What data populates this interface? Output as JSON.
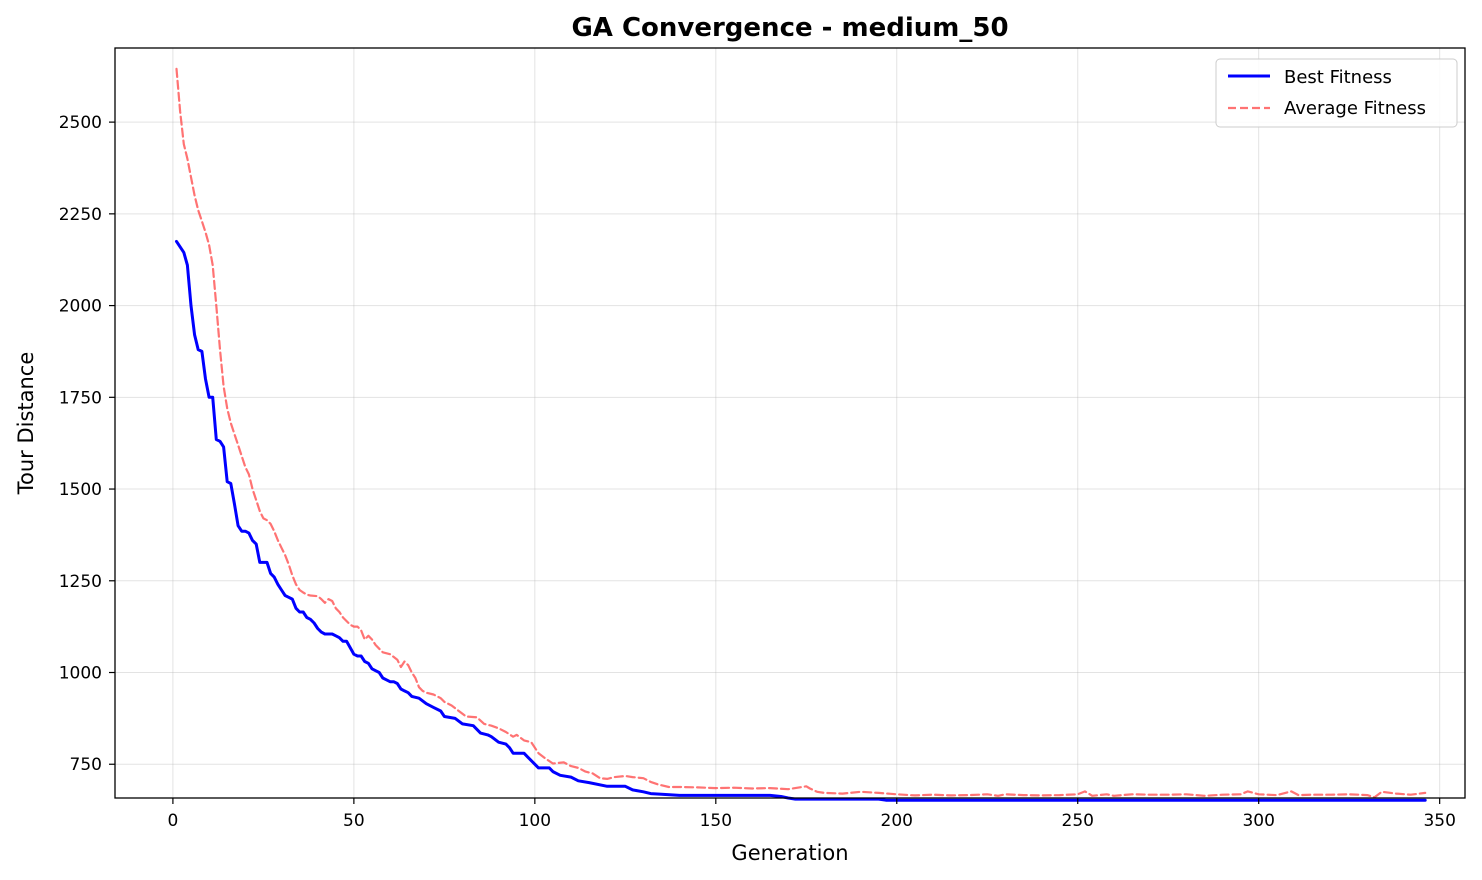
{
  "chart_data": {
    "type": "line",
    "title": "GA Convergence - medium_50",
    "xlabel": "Generation",
    "ylabel": "Tour Distance",
    "xlim": [
      -16,
      357
    ],
    "ylim": [
      658,
      2702
    ],
    "xticks": [
      0,
      50,
      100,
      150,
      200,
      250,
      300,
      350
    ],
    "yticks": [
      750,
      1000,
      1250,
      1500,
      1750,
      2000,
      2250,
      2500
    ],
    "xtick_labels": [
      "0",
      "50",
      "100",
      "150",
      "200",
      "250",
      "300",
      "350"
    ],
    "ytick_labels": [
      "750",
      "1000",
      "1250",
      "1500",
      "1750",
      "2000",
      "2250",
      "2500"
    ],
    "grid": true,
    "legend_position": "top-right",
    "series": [
      {
        "name": "Best Fitness",
        "color": "#0000ff",
        "style": "solid",
        "points": [
          [
            1,
            2175
          ],
          [
            3,
            2145
          ],
          [
            4,
            2110
          ],
          [
            5,
            2000
          ],
          [
            6,
            1920
          ],
          [
            7,
            1880
          ],
          [
            8,
            1875
          ],
          [
            9,
            1800
          ],
          [
            10,
            1750
          ],
          [
            11,
            1750
          ],
          [
            12,
            1635
          ],
          [
            13,
            1630
          ],
          [
            14,
            1615
          ],
          [
            15,
            1520
          ],
          [
            16,
            1515
          ],
          [
            17,
            1460
          ],
          [
            18,
            1400
          ],
          [
            19,
            1385
          ],
          [
            20,
            1385
          ],
          [
            21,
            1380
          ],
          [
            22,
            1360
          ],
          [
            23,
            1350
          ],
          [
            24,
            1300
          ],
          [
            25,
            1300
          ],
          [
            26,
            1300
          ],
          [
            27,
            1270
          ],
          [
            28,
            1260
          ],
          [
            29,
            1240
          ],
          [
            30,
            1225
          ],
          [
            31,
            1210
          ],
          [
            32,
            1205
          ],
          [
            33,
            1200
          ],
          [
            34,
            1175
          ],
          [
            35,
            1165
          ],
          [
            36,
            1165
          ],
          [
            37,
            1150
          ],
          [
            38,
            1145
          ],
          [
            39,
            1135
          ],
          [
            40,
            1120
          ],
          [
            41,
            1110
          ],
          [
            42,
            1105
          ],
          [
            44,
            1105
          ],
          [
            45,
            1100
          ],
          [
            46,
            1095
          ],
          [
            47,
            1085
          ],
          [
            48,
            1085
          ],
          [
            50,
            1050
          ],
          [
            51,
            1045
          ],
          [
            52,
            1045
          ],
          [
            53,
            1030
          ],
          [
            54,
            1025
          ],
          [
            55,
            1010
          ],
          [
            56,
            1005
          ],
          [
            57,
            1000
          ],
          [
            58,
            985
          ],
          [
            59,
            980
          ],
          [
            60,
            975
          ],
          [
            61,
            975
          ],
          [
            62,
            970
          ],
          [
            63,
            955
          ],
          [
            64,
            950
          ],
          [
            65,
            945
          ],
          [
            66,
            935
          ],
          [
            68,
            930
          ],
          [
            70,
            915
          ],
          [
            72,
            905
          ],
          [
            74,
            895
          ],
          [
            75,
            880
          ],
          [
            78,
            875
          ],
          [
            80,
            860
          ],
          [
            83,
            855
          ],
          [
            85,
            835
          ],
          [
            87,
            830
          ],
          [
            88,
            825
          ],
          [
            90,
            810
          ],
          [
            92,
            805
          ],
          [
            93,
            795
          ],
          [
            94,
            780
          ],
          [
            97,
            780
          ],
          [
            98,
            770
          ],
          [
            100,
            750
          ],
          [
            101,
            740
          ],
          [
            104,
            740
          ],
          [
            105,
            730
          ],
          [
            107,
            720
          ],
          [
            110,
            715
          ],
          [
            112,
            705
          ],
          [
            115,
            700
          ],
          [
            120,
            690
          ],
          [
            125,
            690
          ],
          [
            127,
            680
          ],
          [
            130,
            675
          ],
          [
            132,
            670
          ],
          [
            135,
            668
          ],
          [
            140,
            665
          ],
          [
            165,
            665
          ],
          [
            168,
            662
          ],
          [
            170,
            658
          ],
          [
            172,
            655
          ],
          [
            195,
            655
          ],
          [
            197,
            652
          ],
          [
            346,
            652
          ]
        ]
      },
      {
        "name": "Average Fitness",
        "color": "#ff4444",
        "style": "dashed",
        "points": [
          [
            1,
            2645
          ],
          [
            2,
            2530
          ],
          [
            3,
            2440
          ],
          [
            4,
            2400
          ],
          [
            5,
            2350
          ],
          [
            6,
            2300
          ],
          [
            7,
            2260
          ],
          [
            8,
            2230
          ],
          [
            9,
            2200
          ],
          [
            10,
            2165
          ],
          [
            11,
            2110
          ],
          [
            12,
            2000
          ],
          [
            13,
            1880
          ],
          [
            14,
            1780
          ],
          [
            15,
            1720
          ],
          [
            16,
            1680
          ],
          [
            17,
            1650
          ],
          [
            18,
            1620
          ],
          [
            19,
            1590
          ],
          [
            20,
            1560
          ],
          [
            21,
            1540
          ],
          [
            22,
            1500
          ],
          [
            23,
            1470
          ],
          [
            24,
            1440
          ],
          [
            25,
            1420
          ],
          [
            26,
            1415
          ],
          [
            27,
            1405
          ],
          [
            28,
            1385
          ],
          [
            29,
            1360
          ],
          [
            30,
            1340
          ],
          [
            31,
            1320
          ],
          [
            32,
            1295
          ],
          [
            33,
            1265
          ],
          [
            34,
            1240
          ],
          [
            35,
            1225
          ],
          [
            36,
            1218
          ],
          [
            37,
            1212
          ],
          [
            38,
            1210
          ],
          [
            40,
            1208
          ],
          [
            41,
            1200
          ],
          [
            42,
            1190
          ],
          [
            43,
            1200
          ],
          [
            44,
            1195
          ],
          [
            45,
            1175
          ],
          [
            46,
            1165
          ],
          [
            47,
            1150
          ],
          [
            48,
            1140
          ],
          [
            49,
            1130
          ],
          [
            50,
            1125
          ],
          [
            51,
            1125
          ],
          [
            52,
            1115
          ],
          [
            53,
            1090
          ],
          [
            54,
            1100
          ],
          [
            55,
            1090
          ],
          [
            56,
            1075
          ],
          [
            57,
            1065
          ],
          [
            58,
            1055
          ],
          [
            60,
            1050
          ],
          [
            62,
            1035
          ],
          [
            63,
            1015
          ],
          [
            64,
            1030
          ],
          [
            65,
            1020
          ],
          [
            66,
            1000
          ],
          [
            67,
            985
          ],
          [
            68,
            960
          ],
          [
            69,
            950
          ],
          [
            70,
            945
          ],
          [
            72,
            940
          ],
          [
            74,
            930
          ],
          [
            75,
            920
          ],
          [
            77,
            910
          ],
          [
            79,
            895
          ],
          [
            81,
            880
          ],
          [
            84,
            878
          ],
          [
            86,
            860
          ],
          [
            88,
            855
          ],
          [
            90,
            848
          ],
          [
            92,
            838
          ],
          [
            94,
            825
          ],
          [
            95,
            830
          ],
          [
            97,
            815
          ],
          [
            99,
            810
          ],
          [
            101,
            780
          ],
          [
            103,
            765
          ],
          [
            105,
            752
          ],
          [
            108,
            755
          ],
          [
            110,
            745
          ],
          [
            112,
            740
          ],
          [
            114,
            730
          ],
          [
            116,
            725
          ],
          [
            118,
            712
          ],
          [
            120,
            710
          ],
          [
            122,
            715
          ],
          [
            125,
            718
          ],
          [
            127,
            715
          ],
          [
            130,
            712
          ],
          [
            132,
            702
          ],
          [
            134,
            695
          ],
          [
            137,
            688
          ],
          [
            140,
            688
          ],
          [
            145,
            687
          ],
          [
            150,
            685
          ],
          [
            155,
            686
          ],
          [
            160,
            684
          ],
          [
            165,
            685
          ],
          [
            170,
            682
          ],
          [
            175,
            690
          ],
          [
            176,
            684
          ],
          [
            178,
            675
          ],
          [
            180,
            672
          ],
          [
            185,
            670
          ],
          [
            190,
            675
          ],
          [
            195,
            672
          ],
          [
            200,
            668
          ],
          [
            205,
            665
          ],
          [
            210,
            667
          ],
          [
            215,
            665
          ],
          [
            220,
            666
          ],
          [
            225,
            668
          ],
          [
            228,
            664
          ],
          [
            230,
            668
          ],
          [
            235,
            666
          ],
          [
            240,
            665
          ],
          [
            245,
            666
          ],
          [
            250,
            668
          ],
          [
            252,
            676
          ],
          [
            254,
            664
          ],
          [
            258,
            668
          ],
          [
            260,
            664
          ],
          [
            265,
            668
          ],
          [
            270,
            667
          ],
          [
            275,
            667
          ],
          [
            280,
            668
          ],
          [
            285,
            664
          ],
          [
            290,
            667
          ],
          [
            295,
            668
          ],
          [
            297,
            676
          ],
          [
            300,
            668
          ],
          [
            305,
            666
          ],
          [
            309,
            676
          ],
          [
            311,
            666
          ],
          [
            315,
            667
          ],
          [
            320,
            667
          ],
          [
            325,
            668
          ],
          [
            330,
            666
          ],
          [
            332,
            660
          ],
          [
            334,
            675
          ],
          [
            338,
            670
          ],
          [
            342,
            667
          ],
          [
            346,
            672
          ]
        ]
      }
    ]
  }
}
